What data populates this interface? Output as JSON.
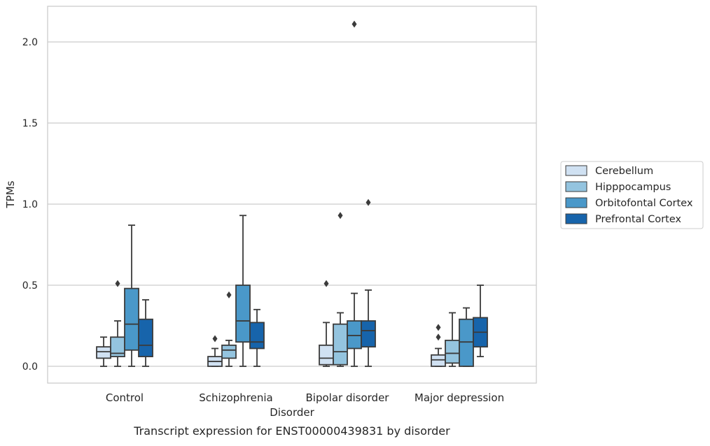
{
  "chart_data": {
    "type": "box",
    "title": "",
    "caption": "Transcript expression for ENST00000439831 by disorder",
    "xlabel": "Disorder",
    "ylabel": "TPMs",
    "categories": [
      "Control",
      "Schizophrenia",
      "Bipolar disorder",
      "Major depression"
    ],
    "ylim": [
      -0.1,
      2.23
    ],
    "yticks": [
      0.0,
      0.5,
      1.0,
      1.5,
      2.0
    ],
    "ytick_labels": [
      "0.0",
      "0.5",
      "1.0",
      "1.5",
      "2.0"
    ],
    "grid": "horizontal",
    "legend_position": "right",
    "series": [
      {
        "name": "Cerebellum",
        "color": "#d0e1f2",
        "boxes": [
          {
            "whisker_low": 0.0,
            "q1": 0.05,
            "median": 0.09,
            "q3": 0.12,
            "whisker_high": 0.18,
            "outliers": []
          },
          {
            "whisker_low": 0.0,
            "q1": 0.0,
            "median": 0.03,
            "q3": 0.06,
            "whisker_high": 0.11,
            "outliers": [
              0.17
            ]
          },
          {
            "whisker_low": 0.0,
            "q1": 0.01,
            "median": 0.05,
            "q3": 0.13,
            "whisker_high": 0.27,
            "outliers": [
              0.51
            ]
          },
          {
            "whisker_low": 0.0,
            "q1": 0.0,
            "median": 0.04,
            "q3": 0.07,
            "whisker_high": 0.11,
            "outliers": [
              0.18,
              0.24
            ]
          }
        ]
      },
      {
        "name": "Hipppocampus",
        "color": "#94c4df",
        "boxes": [
          {
            "whisker_low": 0.0,
            "q1": 0.06,
            "median": 0.08,
            "q3": 0.18,
            "whisker_high": 0.28,
            "outliers": [
              0.51
            ]
          },
          {
            "whisker_low": 0.0,
            "q1": 0.05,
            "median": 0.1,
            "q3": 0.13,
            "whisker_high": 0.16,
            "outliers": [
              0.44
            ]
          },
          {
            "whisker_low": 0.0,
            "q1": 0.01,
            "median": 0.09,
            "q3": 0.26,
            "whisker_high": 0.33,
            "outliers": [
              0.93
            ]
          },
          {
            "whisker_low": 0.0,
            "q1": 0.02,
            "median": 0.08,
            "q3": 0.16,
            "whisker_high": 0.33,
            "outliers": []
          }
        ]
      },
      {
        "name": "Orbitofontal Cortex",
        "color": "#4a98c9",
        "boxes": [
          {
            "whisker_low": 0.0,
            "q1": 0.1,
            "median": 0.26,
            "q3": 0.48,
            "whisker_high": 0.87,
            "outliers": []
          },
          {
            "whisker_low": 0.0,
            "q1": 0.15,
            "median": 0.28,
            "q3": 0.5,
            "whisker_high": 0.93,
            "outliers": []
          },
          {
            "whisker_low": 0.0,
            "q1": 0.11,
            "median": 0.19,
            "q3": 0.28,
            "whisker_high": 0.45,
            "outliers": [
              2.11
            ]
          },
          {
            "whisker_low": 0.0,
            "q1": 0.0,
            "median": 0.15,
            "q3": 0.29,
            "whisker_high": 0.36,
            "outliers": []
          }
        ]
      },
      {
        "name": "Prefrontal Cortex",
        "color": "#1764ab",
        "boxes": [
          {
            "whisker_low": 0.0,
            "q1": 0.06,
            "median": 0.13,
            "q3": 0.29,
            "whisker_high": 0.41,
            "outliers": []
          },
          {
            "whisker_low": 0.0,
            "q1": 0.11,
            "median": 0.15,
            "q3": 0.27,
            "whisker_high": 0.35,
            "outliers": []
          },
          {
            "whisker_low": 0.0,
            "q1": 0.12,
            "median": 0.22,
            "q3": 0.28,
            "whisker_high": 0.47,
            "outliers": [
              1.01
            ]
          },
          {
            "whisker_low": 0.06,
            "q1": 0.12,
            "median": 0.21,
            "q3": 0.3,
            "whisker_high": 0.5,
            "outliers": []
          }
        ]
      }
    ]
  }
}
